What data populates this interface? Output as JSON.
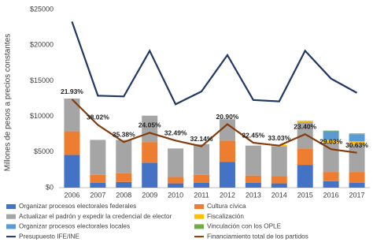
{
  "chart_data": {
    "type": "bar",
    "ylabel": "Millones de pesos a precios constantes",
    "categories": [
      "2006",
      "2007",
      "2008",
      "2009",
      "2010",
      "2011",
      "2012",
      "2013",
      "2014",
      "2015",
      "2016",
      "2017"
    ],
    "ylim": [
      0,
      25000
    ],
    "yticks": [
      {
        "value": 0,
        "label": "$0"
      },
      {
        "value": 5000,
        "label": "$5000"
      },
      {
        "value": 10000,
        "label": "$10000"
      },
      {
        "value": 15000,
        "label": "$15000"
      },
      {
        "value": 20000,
        "label": "$20000"
      },
      {
        "value": 25000,
        "label": "$25000"
      }
    ],
    "series": [
      {
        "name": "Organizar procesos electorales federales",
        "color": "#4472c4",
        "values": [
          4600,
          700,
          800,
          3500,
          600,
          700,
          3600,
          700,
          600,
          3200,
          900,
          700
        ]
      },
      {
        "name": "Cultura cívica",
        "color": "#ed7d31",
        "values": [
          3300,
          1100,
          1200,
          2900,
          900,
          1100,
          3000,
          1000,
          1000,
          2300,
          1300,
          1500
        ]
      },
      {
        "name": "Actualizar el padrón y expedir la credencial de elector",
        "color": "#a5a5a5",
        "values": [
          4600,
          4900,
          4700,
          3700,
          4000,
          4300,
          3000,
          4200,
          4200,
          3700,
          4100,
          3900
        ]
      },
      {
        "name": "Fiscalización",
        "color": "#ffc000",
        "values": [
          0,
          0,
          0,
          0,
          0,
          0,
          0,
          0,
          200,
          200,
          400,
          400
        ]
      },
      {
        "name": "Organizar procesos electorales locales",
        "color": "#5b9bd5",
        "values": [
          0,
          0,
          0,
          0,
          0,
          0,
          0,
          0,
          0,
          0,
          1200,
          1000
        ]
      },
      {
        "name": "Vinculación con los OPLE",
        "color": "#70ad47",
        "values": [
          0,
          0,
          0,
          0,
          0,
          0,
          0,
          0,
          0,
          0,
          100,
          100
        ]
      },
      {
        "name": "Presupuesto IFE/INE",
        "color": "#203864",
        "type": "line",
        "values": [
          23300,
          12900,
          12800,
          19200,
          11700,
          13500,
          18600,
          12300,
          12100,
          19200,
          15300,
          13300
        ]
      },
      {
        "name": "Financiamiento total de los partidos",
        "color": "#843c0c",
        "type": "line",
        "values": [
          12400,
          8800,
          6400,
          7700,
          6600,
          5800,
          8900,
          6300,
          5900,
          7500,
          5400,
          4900
        ]
      }
    ],
    "annotations": [
      "21.93%",
      "38.02%",
      "35.38%",
      "24.05%",
      "32.49%",
      "32.14%",
      "20.90%",
      "32.45%",
      "33.03%",
      "23.40%",
      "29.03%",
      "30.63%"
    ]
  }
}
